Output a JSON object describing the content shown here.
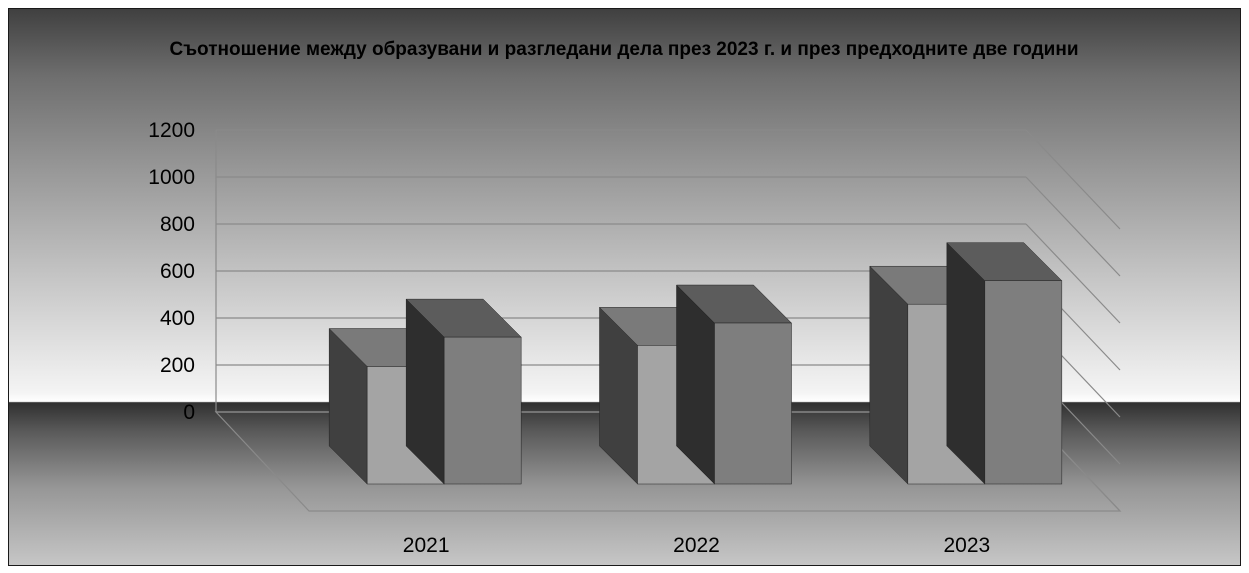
{
  "chart_data": {
    "type": "bar",
    "style": "3d-clustered-column",
    "title": "Съотношение между образувани и разгледани дела през 2023 г. и през предходните две години",
    "categories": [
      "2021",
      "2022",
      "2023"
    ],
    "series": [
      {
        "values": [
          500,
          590,
          765
        ],
        "color": "#a4a4a4"
      },
      {
        "values": [
          625,
          685,
          865
        ],
        "color": "#7e7e7e"
      }
    ],
    "ylim": [
      0,
      1200
    ],
    "yticks": [
      "0",
      "200",
      "400",
      "600",
      "800",
      "1000",
      "1200"
    ],
    "grid": true,
    "legend": "none"
  }
}
